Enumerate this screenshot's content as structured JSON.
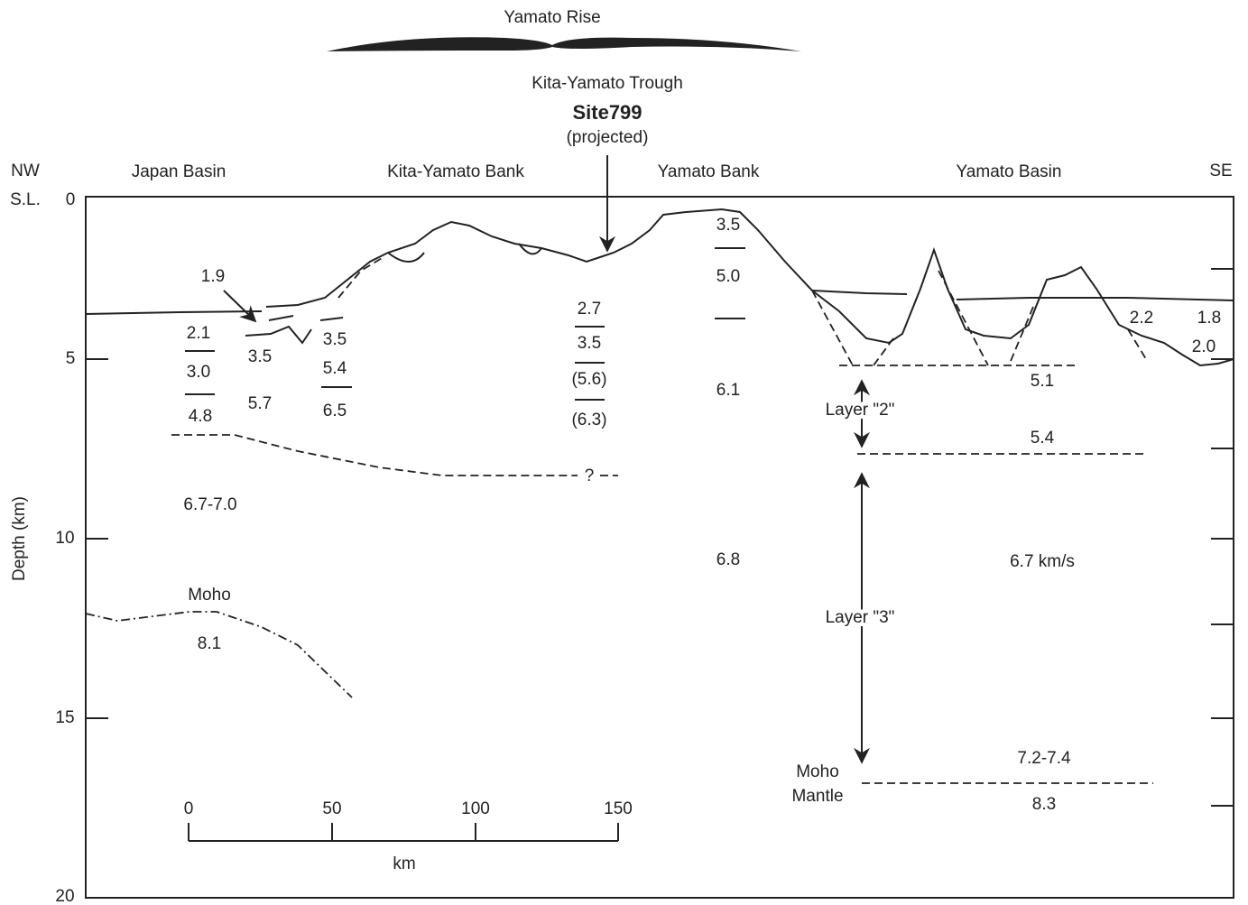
{
  "header": {
    "rise": "Yamato Rise",
    "trough": "Kita-Yamato Trough",
    "site": "Site799",
    "site_note": "(projected)"
  },
  "regions": [
    "NW",
    "Japan Basin",
    "Kita-Yamato Bank",
    "Yamato Bank",
    "Yamato Basin",
    "SE"
  ],
  "sea_level": "S.L.",
  "depth_axis": {
    "label": "Depth (km)",
    "ticks": [
      "0",
      "5",
      "10",
      "15",
      "20"
    ]
  },
  "velocities": [
    "1.9",
    "2.1",
    "3.0",
    "4.8",
    "3.5",
    "5.7",
    "3.5",
    "5.4",
    "6.5",
    "2.7",
    "3.5",
    "(5.6)",
    "(6.3)",
    "3.5",
    "5.0",
    "6.1",
    "6.8",
    "6.7-7.0",
    "8.1",
    "2.2",
    "1.8",
    "2.0",
    "5.1",
    "5.4",
    "6.7 km/s",
    "7.2-7.4",
    "8.3"
  ],
  "annotations": [
    "Moho",
    "Layer \"2\"",
    "Layer \"3\"",
    "Moho",
    "Mantle",
    "?"
  ],
  "scale_bar": {
    "ticks": [
      "0",
      "50",
      "100",
      "150"
    ],
    "unit": "km"
  }
}
